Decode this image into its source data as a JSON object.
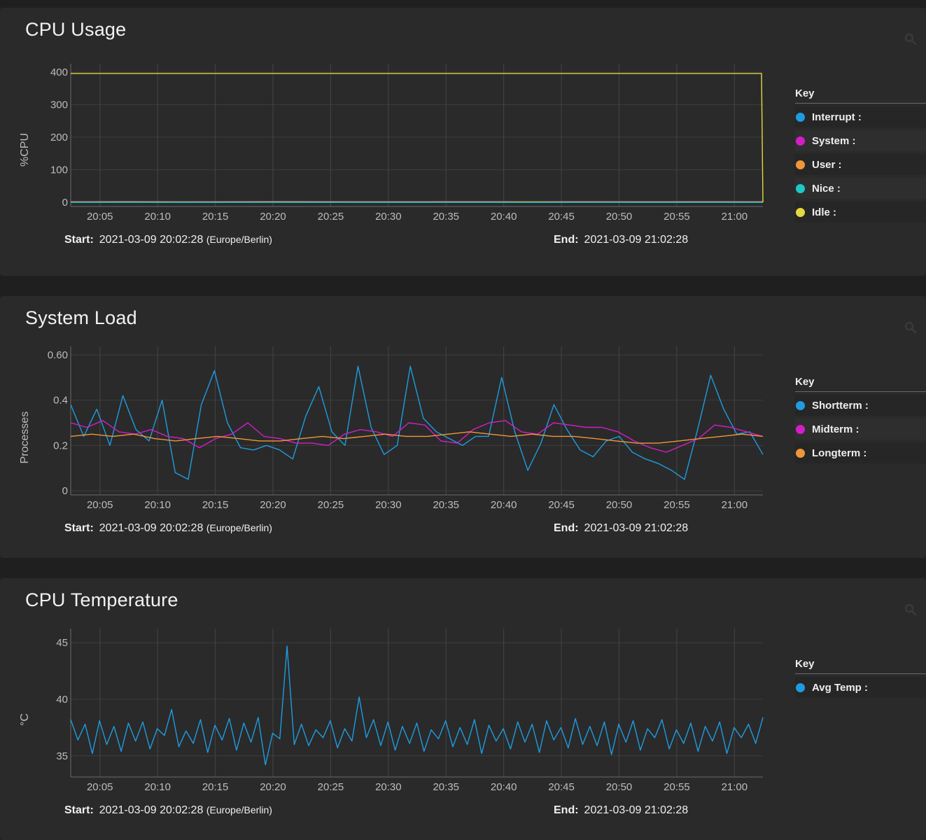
{
  "panels": [
    {
      "id": "cpu",
      "title": "CPU Usage",
      "range": {
        "start_label": "Start:",
        "start": "2021-03-09 20:02:28",
        "timezone": "(Europe/Berlin)",
        "end_label": "End:",
        "end": "2021-03-09 21:02:28"
      },
      "legend": {
        "header": "Key",
        "items": [
          {
            "label": "Interrupt :",
            "color": "#1e9ce0"
          },
          {
            "label": "System :",
            "color": "#d31ec8"
          },
          {
            "label": "User :",
            "color": "#f0963a"
          },
          {
            "label": "Nice :",
            "color": "#1ec8c8"
          },
          {
            "label": "Idle :",
            "color": "#e3d840"
          }
        ]
      }
    },
    {
      "id": "load",
      "title": "System Load",
      "range": {
        "start_label": "Start:",
        "start": "2021-03-09 20:02:28",
        "timezone": "(Europe/Berlin)",
        "end_label": "End:",
        "end": "2021-03-09 21:02:28"
      },
      "legend": {
        "header": "Key",
        "items": [
          {
            "label": "Shortterm :",
            "color": "#1e9ce0"
          },
          {
            "label": "Midterm :",
            "color": "#d31ec8"
          },
          {
            "label": "Longterm :",
            "color": "#f0963a"
          }
        ]
      }
    },
    {
      "id": "temp",
      "title": "CPU Temperature",
      "range": {
        "start_label": "Start:",
        "start": "2021-03-09 20:02:28",
        "timezone": "(Europe/Berlin)",
        "end_label": "End:",
        "end": "2021-03-09 21:02:28"
      },
      "legend": {
        "header": "Key",
        "items": [
          {
            "label": "Avg Temp :",
            "color": "#1e9ce0"
          }
        ]
      }
    }
  ],
  "chart_data": [
    {
      "type": "line",
      "title": "CPU Usage",
      "ylabel": "%CPU",
      "ylim": [
        0,
        400
      ],
      "yticks": [
        "0",
        "100",
        "200",
        "300",
        "400"
      ],
      "ytick_values": [
        0,
        100,
        200,
        300,
        400
      ],
      "xticks": [
        "20:05",
        "20:10",
        "20:15",
        "20:20",
        "20:25",
        "20:30",
        "20:35",
        "20:40",
        "20:45",
        "20:50",
        "20:55",
        "21:00"
      ],
      "xlim": [
        "20:02:28",
        "21:02:28"
      ],
      "grid": true,
      "legend_position": "right",
      "series": [
        {
          "name": "Interrupt",
          "color": "#1e9ce0",
          "values": [
            0.4,
            0.4,
            0.3,
            0.4,
            0.3,
            0.4,
            0.3,
            0.4,
            0.3,
            0.4,
            0.3,
            0.4,
            0.3
          ]
        },
        {
          "name": "System",
          "color": "#d31ec8",
          "values": [
            2,
            2.4,
            1.8,
            2.1,
            2.2,
            1.9,
            2,
            2.3,
            1.8,
            2.1,
            2,
            2.2,
            1.9
          ]
        },
        {
          "name": "User",
          "color": "#f0963a",
          "values": [
            1.5,
            1.7,
            1.4,
            1.6,
            1.8,
            1.5,
            1.6,
            1.4,
            1.7,
            1.5,
            1.6,
            1.5,
            1.4
          ]
        },
        {
          "name": "Nice",
          "color": "#1ec8c8",
          "values": [
            0,
            0,
            0,
            0,
            0,
            0,
            0,
            0,
            0,
            0,
            0,
            0,
            0
          ]
        },
        {
          "name": "Idle",
          "color": "#e3d840",
          "values": [
            396,
            396,
            396,
            396,
            396,
            396,
            396,
            396,
            396,
            396,
            396,
            396,
            0
          ]
        }
      ]
    },
    {
      "type": "line",
      "title": "System Load",
      "ylabel": "Processes",
      "ylim": [
        0,
        0.6
      ],
      "yticks": [
        "0",
        "0.2",
        "0.4",
        "0.60"
      ],
      "ytick_values": [
        0,
        0.2,
        0.4,
        0.6
      ],
      "xticks": [
        "20:05",
        "20:10",
        "20:15",
        "20:20",
        "20:25",
        "20:30",
        "20:35",
        "20:40",
        "20:45",
        "20:50",
        "20:55",
        "21:00"
      ],
      "xlim": [
        "20:02:28",
        "21:02:28"
      ],
      "grid": true,
      "legend_position": "right",
      "series": [
        {
          "name": "Shortterm",
          "color": "#1e9ce0",
          "values": [
            0.38,
            0.24,
            0.36,
            0.2,
            0.42,
            0.27,
            0.22,
            0.4,
            0.08,
            0.05,
            0.38,
            0.53,
            0.3,
            0.19,
            0.18,
            0.2,
            0.18,
            0.14,
            0.33,
            0.46,
            0.26,
            0.2,
            0.55,
            0.28,
            0.16,
            0.2,
            0.55,
            0.32,
            0.26,
            0.23,
            0.2,
            0.24,
            0.24,
            0.5,
            0.26,
            0.09,
            0.21,
            0.38,
            0.27,
            0.18,
            0.15,
            0.22,
            0.24,
            0.17,
            0.14,
            0.12,
            0.09,
            0.05,
            0.27,
            0.51,
            0.36,
            0.25,
            0.26,
            0.16
          ]
        },
        {
          "name": "Midterm",
          "color": "#d31ec8",
          "values": [
            0.3,
            0.28,
            0.31,
            0.26,
            0.25,
            0.27,
            0.24,
            0.23,
            0.19,
            0.23,
            0.25,
            0.3,
            0.24,
            0.23,
            0.21,
            0.21,
            0.2,
            0.25,
            0.27,
            0.26,
            0.24,
            0.3,
            0.29,
            0.22,
            0.21,
            0.27,
            0.3,
            0.31,
            0.26,
            0.25,
            0.3,
            0.29,
            0.28,
            0.28,
            0.26,
            0.22,
            0.19,
            0.17,
            0.2,
            0.23,
            0.29,
            0.28,
            0.26,
            0.24
          ]
        },
        {
          "name": "Longterm",
          "color": "#f0963a",
          "values": [
            0.24,
            0.25,
            0.24,
            0.25,
            0.23,
            0.22,
            0.23,
            0.24,
            0.23,
            0.22,
            0.22,
            0.23,
            0.24,
            0.23,
            0.24,
            0.25,
            0.24,
            0.24,
            0.25,
            0.26,
            0.25,
            0.24,
            0.25,
            0.24,
            0.24,
            0.23,
            0.22,
            0.21,
            0.21,
            0.22,
            0.23,
            0.24,
            0.25,
            0.24
          ]
        }
      ]
    },
    {
      "type": "line",
      "title": "CPU Temperature",
      "ylabel": "°C",
      "ylim": [
        33.5,
        45.5
      ],
      "yticks": [
        "35",
        "40",
        "45"
      ],
      "ytick_values": [
        35,
        40,
        45
      ],
      "xticks": [
        "20:05",
        "20:10",
        "20:15",
        "20:20",
        "20:25",
        "20:30",
        "20:35",
        "20:40",
        "20:45",
        "20:50",
        "20:55",
        "21:00"
      ],
      "xlim": [
        "20:02:28",
        "21:02:28"
      ],
      "grid": true,
      "legend_position": "right",
      "series": [
        {
          "name": "Avg Temp",
          "color": "#1e9ce0",
          "values": [
            38.2,
            36.4,
            37.8,
            35.2,
            38.1,
            36.0,
            37.6,
            35.4,
            37.9,
            36.3,
            38.0,
            35.6,
            37.4,
            36.8,
            39.1,
            35.8,
            37.2,
            36.1,
            38.2,
            35.3,
            37.7,
            36.4,
            38.3,
            35.5,
            37.9,
            36.2,
            38.4,
            34.2,
            37.0,
            36.5,
            44.7,
            36.0,
            37.8,
            35.9,
            37.3,
            36.6,
            38.1,
            35.7,
            37.4,
            36.3,
            40.2,
            36.6,
            38.2,
            35.9,
            38.0,
            35.5,
            37.6,
            36.1,
            37.9,
            35.4,
            37.3,
            36.5,
            38.1,
            35.8,
            37.5,
            36.0,
            38.2,
            35.2,
            37.7,
            36.3,
            37.4,
            35.6,
            38.0,
            36.2,
            37.8,
            35.3,
            38.1,
            36.4,
            37.5,
            35.7,
            38.3,
            36.0,
            37.6,
            35.9,
            38.0,
            35.1,
            37.8,
            36.2,
            38.1,
            35.5,
            37.4,
            36.6,
            38.2,
            35.6,
            37.3,
            36.1,
            37.9,
            35.4,
            37.6,
            36.3,
            38.0,
            35.2,
            37.5,
            36.6,
            37.8,
            36.1,
            38.4
          ]
        }
      ]
    }
  ]
}
